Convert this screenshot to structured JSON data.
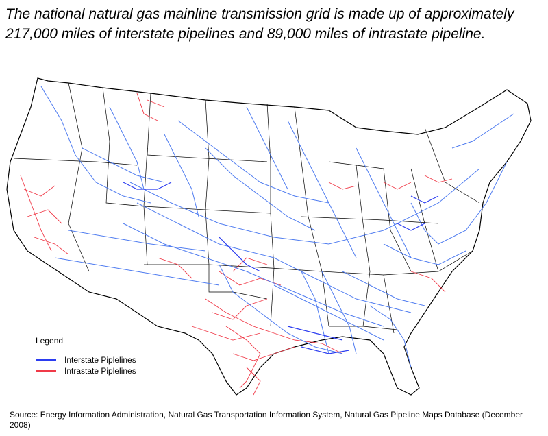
{
  "title": "The national natural gas mainline transmission grid is made up of approximately 217,000 miles of interstate pipelines and 89,000 miles of intrastate pipeline.",
  "legend": {
    "title": "Legend",
    "items": [
      {
        "label": "Interstate Piplelines",
        "color": "#2b3cf0"
      },
      {
        "label": "Intrastate Piplelines",
        "color": "#f03a48"
      }
    ]
  },
  "source": "Source: Energy Information Administration, Natural Gas Transportation Information System, Natural Gas Pipeline Maps Database (December 2008)",
  "colors": {
    "interstate": "#2b3cf0",
    "interstate_light": "#4f7cf0",
    "intrastate": "#f03a48",
    "state_border": "#000000"
  }
}
